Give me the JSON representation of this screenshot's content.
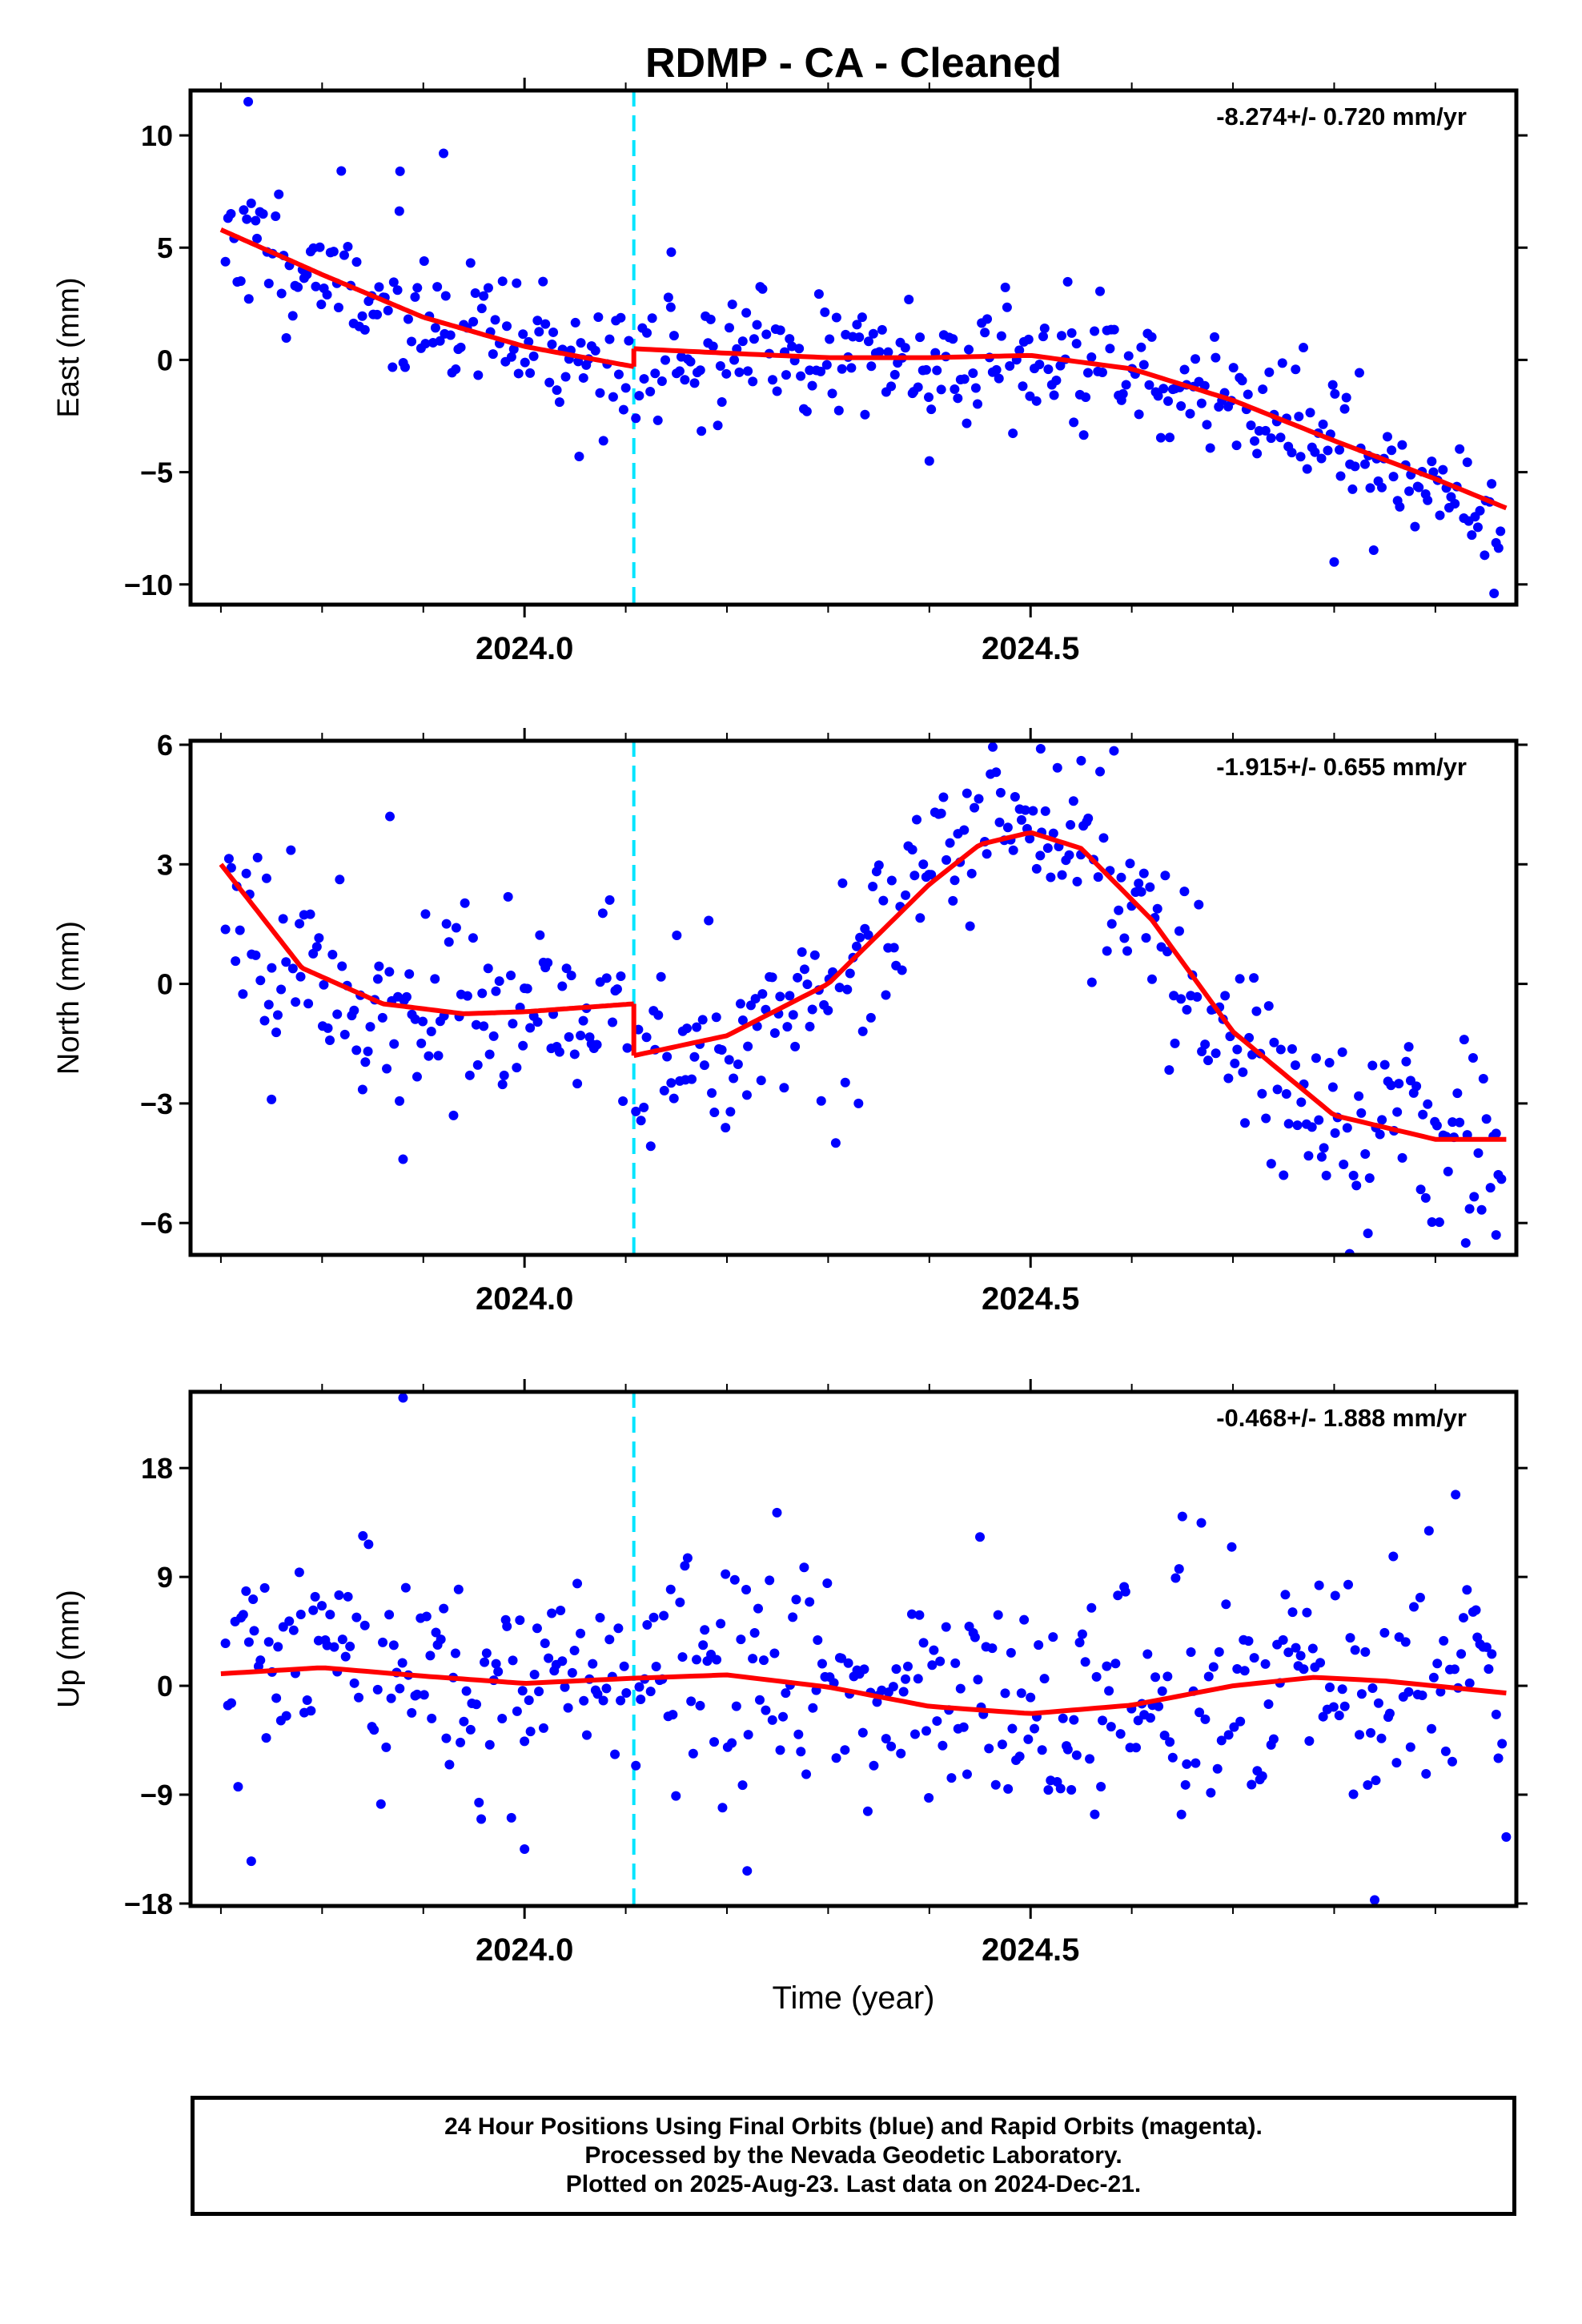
{
  "title": "RDMP  - CA - Cleaned",
  "xlabel": "Time (year)",
  "footer": {
    "line1": "24 Hour Positions Using Final Orbits (blue) and Rapid Orbits (magenta).",
    "line2": "Processed by the Nevada Geodetic Laboratory.",
    "line3": "Plotted on 2025-Aug-23. Last data on 2024-Dec-21."
  },
  "colors": {
    "points": "#0000ff",
    "fit": "#ff0000",
    "break": "#00e5ff",
    "frame": "#000000"
  },
  "chart_data": [
    {
      "type": "scatter",
      "name": "east",
      "ylabel": "East (mm)",
      "rate": "-8.274+/- 0.720 mm/yr",
      "xlim": [
        2023.67,
        2024.98
      ],
      "ylim": [
        -10.9,
        12.0
      ],
      "yticks": [
        -10,
        -5,
        0,
        5,
        10
      ],
      "xticks": [
        "2024.0",
        "2024.5"
      ],
      "break_x": 2024.108,
      "seed": 11,
      "fit": {
        "segments": [
          {
            "x": [
              2023.7,
              2023.8,
              2023.9,
              2024.0,
              2024.108
            ],
            "y": [
              5.8,
              3.8,
              1.9,
              0.6,
              -0.3
            ]
          },
          {
            "x": [
              2024.108,
              2024.2,
              2024.3,
              2024.4,
              2024.5,
              2024.6,
              2024.7,
              2024.8,
              2024.9,
              2024.97
            ],
            "y": [
              0.5,
              0.3,
              0.1,
              0.1,
              0.2,
              -0.4,
              -1.8,
              -3.6,
              -5.3,
              -6.6
            ]
          }
        ]
      },
      "scatter_sd": 1.4,
      "outliers": [
        [
          2023.727,
          11.5
        ],
        [
          2023.877,
          8.4
        ],
        [
          2023.92,
          9.2
        ],
        [
          2024.054,
          -4.3
        ],
        [
          2024.4,
          -4.5
        ],
        [
          2024.8,
          -9.0
        ],
        [
          2024.958,
          -10.4
        ],
        [
          2024.145,
          4.8
        ],
        [
          2024.11,
          -2.6
        ]
      ]
    },
    {
      "type": "scatter",
      "name": "north",
      "ylabel": "North (mm)",
      "rate": "-1.915+/- 0.655 mm/yr",
      "xlim": [
        2023.67,
        2024.98
      ],
      "ylim": [
        -6.8,
        6.1
      ],
      "yticks": [
        -6,
        -3,
        0,
        3,
        6
      ],
      "xticks": [
        "2024.0",
        "2024.5"
      ],
      "break_x": 2024.108,
      "seed": 23,
      "fit": {
        "segments": [
          {
            "x": [
              2023.7,
              2023.78,
              2023.86,
              2023.94,
              2024.0,
              2024.108
            ],
            "y": [
              3.0,
              0.4,
              -0.5,
              -0.75,
              -0.7,
              -0.5
            ]
          },
          {
            "x": [
              2024.108,
              2024.2,
              2024.3,
              2024.4,
              2024.45,
              2024.5,
              2024.55,
              2024.62,
              2024.7,
              2024.8,
              2024.9,
              2024.97
            ],
            "y": [
              -1.8,
              -1.3,
              0.0,
              2.5,
              3.5,
              3.8,
              3.4,
              1.6,
              -1.2,
              -3.3,
              -3.9,
              -3.9
            ]
          }
        ]
      },
      "scatter_sd": 1.15,
      "outliers": [
        [
          2023.867,
          4.2
        ],
        [
          2023.75,
          -2.9
        ],
        [
          2023.88,
          -4.4
        ],
        [
          2024.33,
          -3.0
        ],
        [
          2024.55,
          5.6
        ],
        [
          2024.93,
          -6.5
        ],
        [
          2024.96,
          -6.3
        ],
        [
          2024.51,
          5.9
        ],
        [
          2024.11,
          -3.2
        ]
      ]
    },
    {
      "type": "scatter",
      "name": "up",
      "ylabel": "Up (mm)",
      "rate": "-0.468+/- 1.888 mm/yr",
      "xlim": [
        2023.67,
        2024.98
      ],
      "ylim": [
        -18.2,
        24.3
      ],
      "yticks": [
        -18,
        -9,
        0,
        9,
        18
      ],
      "xticks": [
        "2024.0",
        "2024.5"
      ],
      "break_x": 2024.108,
      "seed": 37,
      "fit": {
        "segments": [
          {
            "x": [
              2023.7,
              2023.8,
              2023.9,
              2024.0,
              2024.1,
              2024.2,
              2024.3,
              2024.4,
              2024.5,
              2024.6,
              2024.7,
              2024.78,
              2024.85,
              2024.97
            ],
            "y": [
              1.0,
              1.5,
              0.8,
              0.2,
              0.6,
              0.9,
              -0.1,
              -1.7,
              -2.3,
              -1.6,
              0.0,
              0.7,
              0.4,
              -0.6
            ]
          }
        ]
      },
      "scatter_sd": 4.6,
      "outliers": [
        [
          2023.88,
          23.8
        ],
        [
          2024.0,
          -13.5
        ],
        [
          2024.22,
          -15.3
        ],
        [
          2024.65,
          14.0
        ],
        [
          2024.84,
          -17.7
        ],
        [
          2024.92,
          15.8
        ],
        [
          2024.97,
          -12.5
        ],
        [
          2023.73,
          -14.5
        ],
        [
          2024.11,
          -6.6
        ],
        [
          2024.45,
          12.3
        ]
      ]
    }
  ]
}
